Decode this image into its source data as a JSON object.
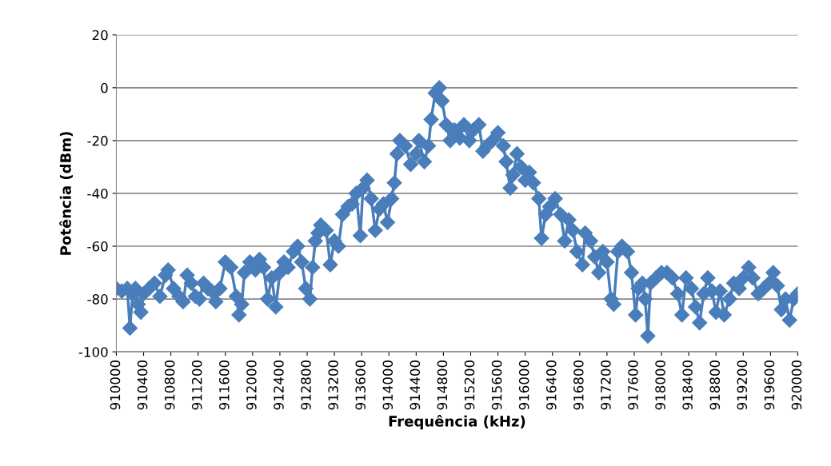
{
  "chart_data": {
    "type": "line",
    "xlabel": "Frequência (kHz)",
    "ylabel": "Potência (dBm)",
    "marker": "diamond",
    "line_style": "solid",
    "grid": "y",
    "legend": false,
    "xlim": [
      910000,
      920000
    ],
    "xticks": [
      910000,
      910400,
      910800,
      911200,
      911600,
      912000,
      912400,
      912800,
      913200,
      913600,
      914000,
      914400,
      914800,
      915200,
      915600,
      916000,
      916400,
      916800,
      917200,
      917600,
      918000,
      918400,
      918800,
      919200,
      919600,
      920000
    ],
    "ylim": [
      -100,
      20
    ],
    "yticks": [
      -100,
      -80,
      -60,
      -40,
      -20,
      0,
      20
    ],
    "x": [
      910000,
      910080,
      910160,
      910200,
      910240,
      910280,
      910320,
      910360,
      910400,
      910480,
      910560,
      910640,
      910720,
      910760,
      910840,
      910920,
      910980,
      911040,
      911100,
      911160,
      911220,
      911280,
      911340,
      911400,
      911460,
      911520,
      911600,
      911680,
      911760,
      911800,
      911840,
      911880,
      911960,
      912040,
      912100,
      912160,
      912220,
      912280,
      912340,
      912400,
      912460,
      912520,
      912600,
      912660,
      912720,
      912780,
      912840,
      912880,
      912920,
      912960,
      913000,
      913080,
      913140,
      913200,
      913260,
      913320,
      913400,
      913460,
      913520,
      913580,
      913620,
      913680,
      913740,
      913800,
      913860,
      913920,
      913980,
      914040,
      914080,
      914120,
      914160,
      914240,
      914320,
      914400,
      914440,
      914520,
      914580,
      914620,
      914680,
      914740,
      914780,
      914840,
      914900,
      914960,
      915040,
      915100,
      915180,
      915240,
      915320,
      915380,
      915440,
      915520,
      915600,
      915680,
      915720,
      915780,
      915820,
      915880,
      915940,
      916000,
      916060,
      916120,
      916200,
      916240,
      916300,
      916360,
      916440,
      916520,
      916580,
      916640,
      916700,
      916760,
      916840,
      916880,
      916960,
      917020,
      917080,
      917140,
      917200,
      917260,
      917300,
      917360,
      917420,
      917500,
      917560,
      917620,
      917660,
      917720,
      917760,
      917800,
      917840,
      917920,
      918000,
      918080,
      918160,
      918240,
      918300,
      918360,
      918440,
      918500,
      918560,
      918620,
      918680,
      918740,
      918800,
      918860,
      918920,
      919000,
      919060,
      919140,
      919200,
      919280,
      919340,
      919420,
      919500,
      919580,
      919640,
      919700,
      919760,
      919820,
      919880,
      919940,
      920000
    ],
    "series": [
      {
        "color": "#4a7ebb",
        "values": [
          -76,
          -77,
          -76,
          -91,
          -78,
          -76,
          -82,
          -85,
          -78,
          -76,
          -74,
          -79,
          -71,
          -69,
          -76,
          -79,
          -81,
          -71,
          -74,
          -79,
          -80,
          -74,
          -76,
          -77,
          -81,
          -76,
          -66,
          -68,
          -79,
          -86,
          -82,
          -70,
          -66,
          -69,
          -65,
          -68,
          -80,
          -72,
          -83,
          -70,
          -66,
          -68,
          -62,
          -60,
          -66,
          -76,
          -80,
          -68,
          -58,
          -55,
          -52,
          -54,
          -67,
          -58,
          -60,
          -48,
          -45,
          -44,
          -40,
          -56,
          -38,
          -35,
          -42,
          -54,
          -46,
          -44,
          -51,
          -42,
          -36,
          -25,
          -20,
          -22,
          -29,
          -25,
          -20,
          -28,
          -22,
          -12,
          -2,
          0,
          -5,
          -14,
          -20,
          -16,
          -19,
          -14,
          -20,
          -16,
          -14,
          -24,
          -22,
          -20,
          -17,
          -22,
          -28,
          -38,
          -33,
          -25,
          -30,
          -35,
          -32,
          -36,
          -42,
          -57,
          -48,
          -45,
          -42,
          -48,
          -58,
          -50,
          -54,
          -62,
          -67,
          -55,
          -58,
          -64,
          -70,
          -62,
          -66,
          -80,
          -82,
          -62,
          -60,
          -62,
          -70,
          -86,
          -76,
          -74,
          -80,
          -94,
          -74,
          -72,
          -70,
          -70,
          -72,
          -78,
          -86,
          -72,
          -76,
          -83,
          -89,
          -78,
          -72,
          -77,
          -85,
          -77,
          -86,
          -80,
          -74,
          -76,
          -72,
          -68,
          -72,
          -78,
          -76,
          -74,
          -70,
          -75,
          -84,
          -80,
          -88,
          -80,
          -78
        ]
      }
    ]
  }
}
